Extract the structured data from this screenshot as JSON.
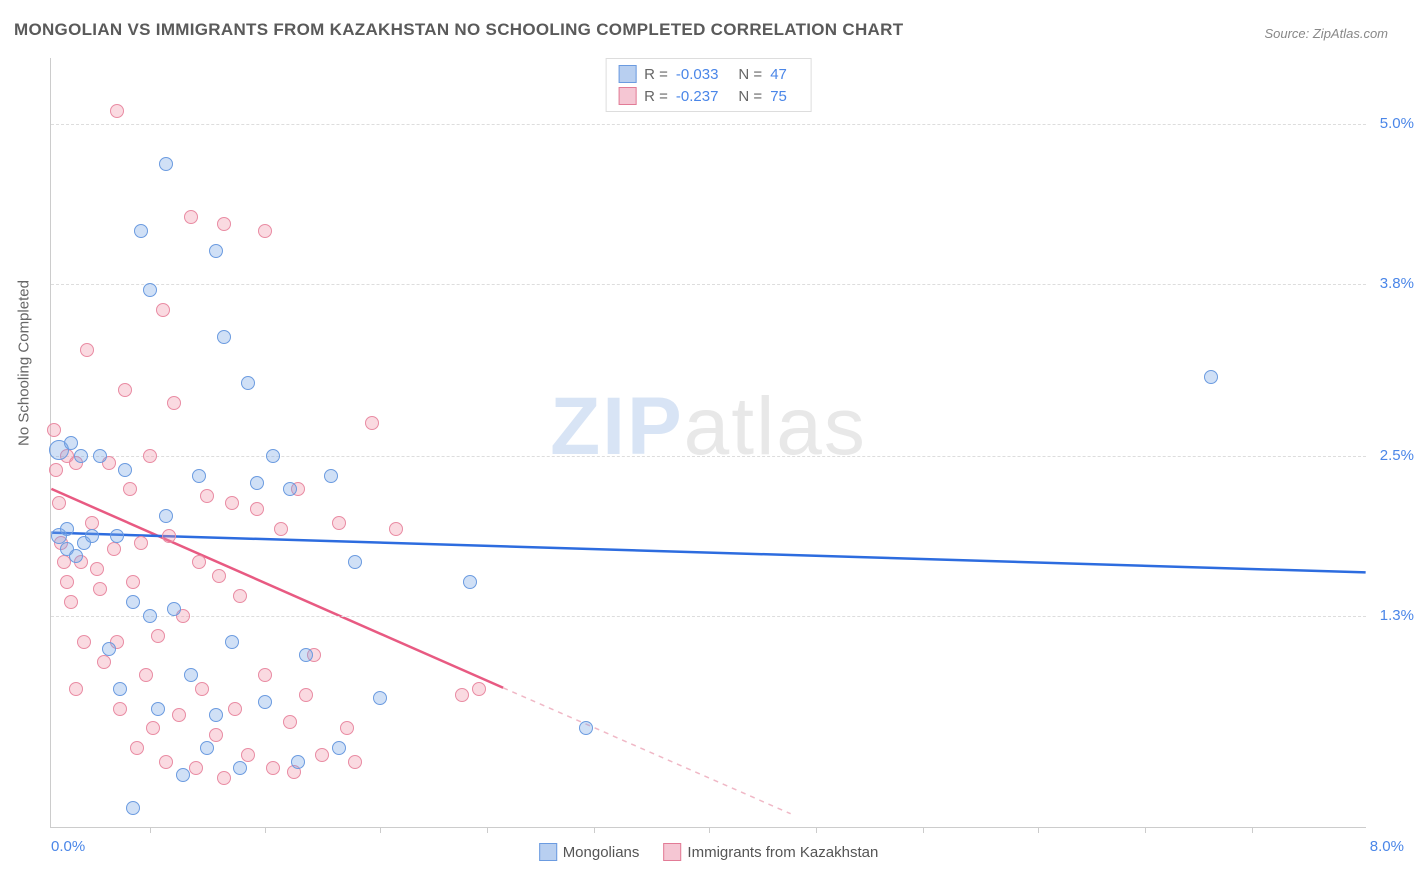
{
  "title": "MONGOLIAN VS IMMIGRANTS FROM KAZAKHSTAN NO SCHOOLING COMPLETED CORRELATION CHART",
  "source": "Source: ZipAtlas.com",
  "watermark_a": "ZIP",
  "watermark_b": "atlas",
  "y_axis_label": "No Schooling Completed",
  "x_range": [
    0.0,
    8.0
  ],
  "y_range": [
    -0.3,
    5.5
  ],
  "y_ticks": [
    {
      "v": 5.0,
      "label": "5.0%"
    },
    {
      "v": 3.8,
      "label": "3.8%"
    },
    {
      "v": 2.5,
      "label": "2.5%"
    },
    {
      "v": 1.3,
      "label": "1.3%"
    }
  ],
  "x_tick_positions": [
    0.6,
    1.3,
    2.0,
    2.65,
    3.3,
    4.0,
    4.65,
    5.3,
    6.0,
    6.65,
    7.3
  ],
  "x_min_label": "0.0%",
  "x_max_label": "8.0%",
  "series": {
    "mongolians": {
      "label": "Mongolians",
      "color_fill": "rgba(120,165,230,0.35)",
      "color_stroke": "#6b9be0",
      "swatch_fill": "#b8cff0",
      "swatch_border": "#6b9be0",
      "r_label": "R =",
      "r_value": "-0.033",
      "n_label": "N =",
      "n_value": "47",
      "trend": {
        "x1": 0.0,
        "y1": 1.92,
        "x2": 8.0,
        "y2": 1.62,
        "color": "#2d6cdf",
        "width": 2.5,
        "dash": "none"
      },
      "points": [
        {
          "x": 0.05,
          "y": 2.55,
          "r": 10
        },
        {
          "x": 0.05,
          "y": 1.9,
          "r": 8
        },
        {
          "x": 0.1,
          "y": 1.95,
          "r": 7
        },
        {
          "x": 0.1,
          "y": 1.8,
          "r": 7
        },
        {
          "x": 0.12,
          "y": 2.6,
          "r": 7
        },
        {
          "x": 0.15,
          "y": 1.75,
          "r": 7
        },
        {
          "x": 0.18,
          "y": 2.5,
          "r": 7
        },
        {
          "x": 0.2,
          "y": 1.85,
          "r": 7
        },
        {
          "x": 0.25,
          "y": 1.9,
          "r": 7
        },
        {
          "x": 0.3,
          "y": 2.5,
          "r": 7
        },
        {
          "x": 0.35,
          "y": 1.05,
          "r": 7
        },
        {
          "x": 0.4,
          "y": 1.9,
          "r": 7
        },
        {
          "x": 0.42,
          "y": 0.75,
          "r": 7
        },
        {
          "x": 0.45,
          "y": 2.4,
          "r": 7
        },
        {
          "x": 0.5,
          "y": 1.4,
          "r": 7
        },
        {
          "x": 0.5,
          "y": -0.15,
          "r": 7
        },
        {
          "x": 0.55,
          "y": 4.2,
          "r": 7
        },
        {
          "x": 0.6,
          "y": 3.75,
          "r": 7
        },
        {
          "x": 0.6,
          "y": 1.3,
          "r": 7
        },
        {
          "x": 0.65,
          "y": 0.6,
          "r": 7
        },
        {
          "x": 0.7,
          "y": 4.7,
          "r": 7
        },
        {
          "x": 0.7,
          "y": 2.05,
          "r": 7
        },
        {
          "x": 0.75,
          "y": 1.35,
          "r": 7
        },
        {
          "x": 0.8,
          "y": 0.1,
          "r": 7
        },
        {
          "x": 0.85,
          "y": 0.85,
          "r": 7
        },
        {
          "x": 0.9,
          "y": 2.35,
          "r": 7
        },
        {
          "x": 0.95,
          "y": 0.3,
          "r": 7
        },
        {
          "x": 1.0,
          "y": 4.05,
          "r": 7
        },
        {
          "x": 1.0,
          "y": 0.55,
          "r": 7
        },
        {
          "x": 1.05,
          "y": 3.4,
          "r": 7
        },
        {
          "x": 1.1,
          "y": 1.1,
          "r": 7
        },
        {
          "x": 1.15,
          "y": 0.15,
          "r": 7
        },
        {
          "x": 1.2,
          "y": 3.05,
          "r": 7
        },
        {
          "x": 1.25,
          "y": 2.3,
          "r": 7
        },
        {
          "x": 1.3,
          "y": 0.65,
          "r": 7
        },
        {
          "x": 1.35,
          "y": 2.5,
          "r": 7
        },
        {
          "x": 1.45,
          "y": 2.25,
          "r": 7
        },
        {
          "x": 1.5,
          "y": 0.2,
          "r": 7
        },
        {
          "x": 1.55,
          "y": 1.0,
          "r": 7
        },
        {
          "x": 1.7,
          "y": 2.35,
          "r": 7
        },
        {
          "x": 1.75,
          "y": 0.3,
          "r": 7
        },
        {
          "x": 1.85,
          "y": 1.7,
          "r": 7
        },
        {
          "x": 2.0,
          "y": 0.68,
          "r": 7
        },
        {
          "x": 2.55,
          "y": 1.55,
          "r": 7
        },
        {
          "x": 3.25,
          "y": 0.45,
          "r": 7
        },
        {
          "x": 7.05,
          "y": 3.1,
          "r": 7
        }
      ]
    },
    "kazakhstan": {
      "label": "Immigrants from Kazakhstan",
      "color_fill": "rgba(240,150,170,0.35)",
      "color_stroke": "#e98ba3",
      "swatch_fill": "#f5c6d3",
      "swatch_border": "#e27b96",
      "r_label": "R =",
      "r_value": "-0.237",
      "n_label": "N =",
      "n_value": "75",
      "trend": {
        "x1": 0.0,
        "y1": 2.25,
        "x2": 4.5,
        "y2": -0.2,
        "color": "#e85a82",
        "width": 2.5,
        "dash": "none"
      },
      "trend_dashed": {
        "x1": 2.75,
        "y1": 0.75,
        "x2": 4.5,
        "y2": -0.2,
        "color": "#f0b8c6",
        "width": 1.5,
        "dash": "5,5"
      },
      "points": [
        {
          "x": 0.02,
          "y": 2.7,
          "r": 7
        },
        {
          "x": 0.03,
          "y": 2.4,
          "r": 7
        },
        {
          "x": 0.05,
          "y": 2.15,
          "r": 7
        },
        {
          "x": 0.06,
          "y": 1.85,
          "r": 7
        },
        {
          "x": 0.08,
          "y": 1.7,
          "r": 7
        },
        {
          "x": 0.1,
          "y": 1.55,
          "r": 7
        },
        {
          "x": 0.1,
          "y": 2.5,
          "r": 7
        },
        {
          "x": 0.12,
          "y": 1.4,
          "r": 7
        },
        {
          "x": 0.15,
          "y": 0.75,
          "r": 7
        },
        {
          "x": 0.15,
          "y": 2.45,
          "r": 7
        },
        {
          "x": 0.18,
          "y": 1.7,
          "r": 7
        },
        {
          "x": 0.2,
          "y": 1.1,
          "r": 7
        },
        {
          "x": 0.22,
          "y": 3.3,
          "r": 7
        },
        {
          "x": 0.25,
          "y": 2.0,
          "r": 7
        },
        {
          "x": 0.28,
          "y": 1.65,
          "r": 7
        },
        {
          "x": 0.3,
          "y": 1.5,
          "r": 7
        },
        {
          "x": 0.32,
          "y": 0.95,
          "r": 7
        },
        {
          "x": 0.35,
          "y": 2.45,
          "r": 7
        },
        {
          "x": 0.38,
          "y": 1.8,
          "r": 7
        },
        {
          "x": 0.4,
          "y": 1.1,
          "r": 7
        },
        {
          "x": 0.4,
          "y": 5.1,
          "r": 7
        },
        {
          "x": 0.42,
          "y": 0.6,
          "r": 7
        },
        {
          "x": 0.45,
          "y": 3.0,
          "r": 7
        },
        {
          "x": 0.48,
          "y": 2.25,
          "r": 7
        },
        {
          "x": 0.5,
          "y": 1.55,
          "r": 7
        },
        {
          "x": 0.52,
          "y": 0.3,
          "r": 7
        },
        {
          "x": 0.55,
          "y": 1.85,
          "r": 7
        },
        {
          "x": 0.58,
          "y": 0.85,
          "r": 7
        },
        {
          "x": 0.6,
          "y": 2.5,
          "r": 7
        },
        {
          "x": 0.62,
          "y": 0.45,
          "r": 7
        },
        {
          "x": 0.65,
          "y": 1.15,
          "r": 7
        },
        {
          "x": 0.68,
          "y": 3.6,
          "r": 7
        },
        {
          "x": 0.7,
          "y": 0.2,
          "r": 7
        },
        {
          "x": 0.72,
          "y": 1.9,
          "r": 7
        },
        {
          "x": 0.75,
          "y": 2.9,
          "r": 7
        },
        {
          "x": 0.78,
          "y": 0.55,
          "r": 7
        },
        {
          "x": 0.8,
          "y": 1.3,
          "r": 7
        },
        {
          "x": 0.85,
          "y": 4.3,
          "r": 7
        },
        {
          "x": 0.88,
          "y": 0.15,
          "r": 7
        },
        {
          "x": 0.9,
          "y": 1.7,
          "r": 7
        },
        {
          "x": 0.92,
          "y": 0.75,
          "r": 7
        },
        {
          "x": 0.95,
          "y": 2.2,
          "r": 7
        },
        {
          "x": 1.0,
          "y": 0.4,
          "r": 7
        },
        {
          "x": 1.02,
          "y": 1.6,
          "r": 7
        },
        {
          "x": 1.05,
          "y": 0.08,
          "r": 7
        },
        {
          "x": 1.05,
          "y": 4.25,
          "r": 7
        },
        {
          "x": 1.1,
          "y": 2.15,
          "r": 7
        },
        {
          "x": 1.12,
          "y": 0.6,
          "r": 7
        },
        {
          "x": 1.15,
          "y": 1.45,
          "r": 7
        },
        {
          "x": 1.2,
          "y": 0.25,
          "r": 7
        },
        {
          "x": 1.25,
          "y": 2.1,
          "r": 7
        },
        {
          "x": 1.3,
          "y": 4.2,
          "r": 7
        },
        {
          "x": 1.3,
          "y": 0.85,
          "r": 7
        },
        {
          "x": 1.35,
          "y": 0.15,
          "r": 7
        },
        {
          "x": 1.4,
          "y": 1.95,
          "r": 7
        },
        {
          "x": 1.45,
          "y": 0.5,
          "r": 7
        },
        {
          "x": 1.48,
          "y": 0.12,
          "r": 7
        },
        {
          "x": 1.5,
          "y": 2.25,
          "r": 7
        },
        {
          "x": 1.55,
          "y": 0.7,
          "r": 7
        },
        {
          "x": 1.6,
          "y": 1.0,
          "r": 7
        },
        {
          "x": 1.65,
          "y": 0.25,
          "r": 7
        },
        {
          "x": 1.75,
          "y": 2.0,
          "r": 7
        },
        {
          "x": 1.8,
          "y": 0.45,
          "r": 7
        },
        {
          "x": 1.85,
          "y": 0.2,
          "r": 7
        },
        {
          "x": 1.95,
          "y": 2.75,
          "r": 7
        },
        {
          "x": 2.1,
          "y": 1.95,
          "r": 7
        },
        {
          "x": 2.5,
          "y": 0.7,
          "r": 7
        },
        {
          "x": 2.6,
          "y": 0.75,
          "r": 7
        }
      ]
    }
  },
  "colors": {
    "grid": "#dddddd",
    "axis": "#cccccc",
    "text_gray": "#666666",
    "tick_blue": "#4a86e8"
  }
}
